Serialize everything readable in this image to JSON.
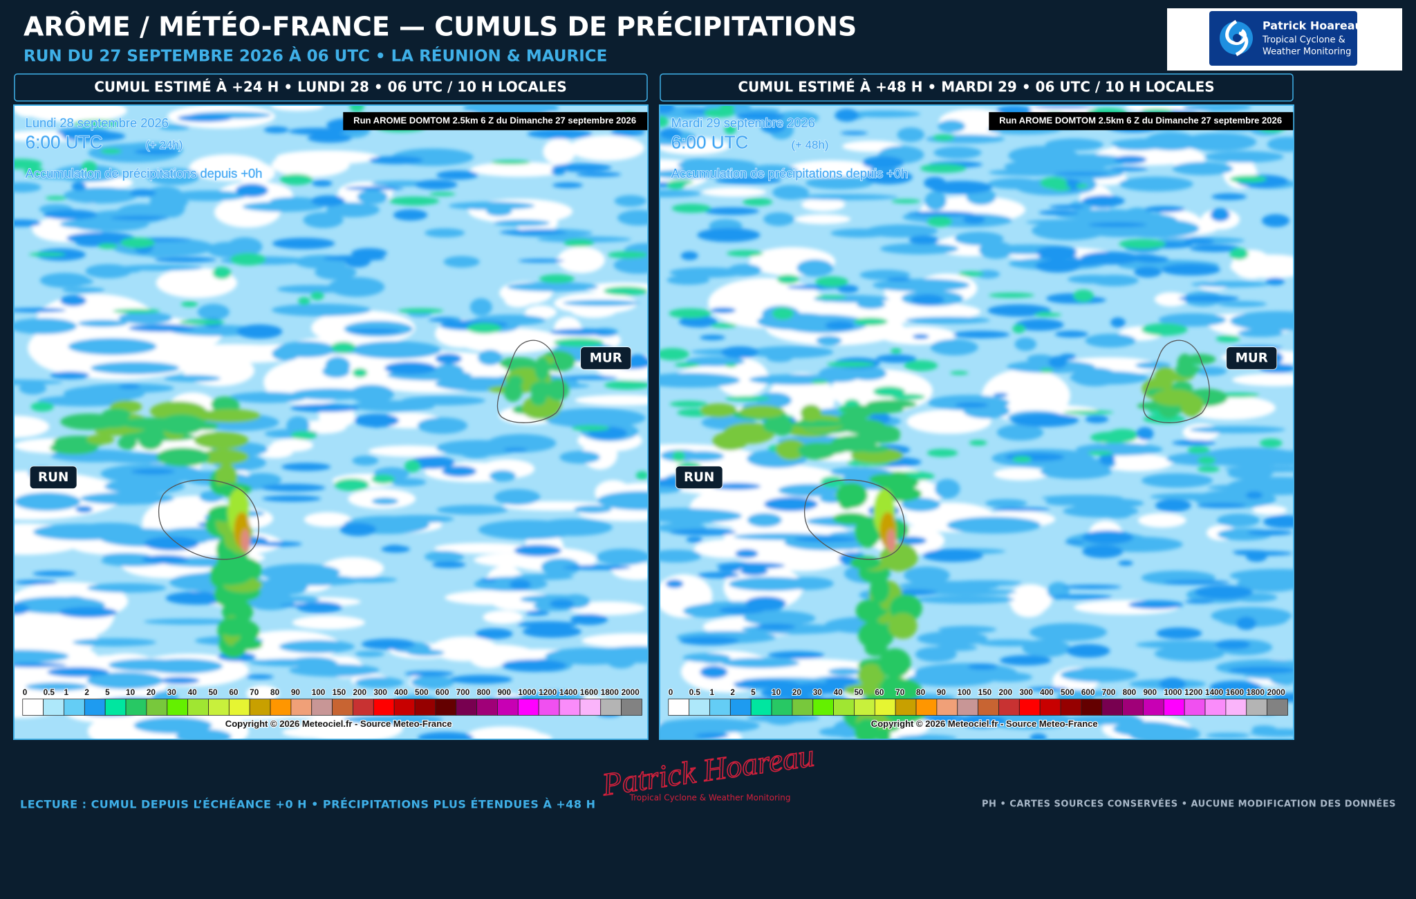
{
  "header": {
    "title": "ARÔME / MÉTÉO-FRANCE — CUMULS DE PRÉCIPITATIONS",
    "subtitle": "RUN DU 27 SEPTEMBRE 2026 À 06 UTC • LA RÉUNION & MAURICE"
  },
  "logo": {
    "name": "Patrick Hoareau",
    "line1": "Tropical Cyclone &",
    "line2": "Weather Monitoring"
  },
  "panels": [
    {
      "heading": "CUMUL ESTIMÉ À +24 H • LUNDI 28 • 06 UTC / 10 H LOCALES",
      "date": "Lundi 28 septembre 2026",
      "time": "6:00 UTC",
      "lead": "(+ 24h)",
      "accumulation": "Accumulation de précipitations depuis +0h",
      "run": "Run AROME DOMTOM 2.5km 6 Z du Dimanche 27 septembre 2026",
      "labels": [
        "RUN",
        "MUR"
      ],
      "copyright": "Copyright © 2026 Meteociel.fr - Source Meteo-France"
    },
    {
      "heading": "CUMUL ESTIMÉ À +48 H • MARDI 29 • 06 UTC / 10 H LOCALES",
      "date": "Mardi 29 septembre 2026",
      "time": "6:00 UTC",
      "lead": "(+ 48h)",
      "accumulation": "Accumulation de précipitations depuis +0h",
      "run": "Run AROME DOMTOM 2.5km 6 Z du Dimanche 27 septembre 2026",
      "labels": [
        "RUN",
        "MUR"
      ],
      "copyright": "Copyright © 2026 Meteociel.fr - Source Meteo-France"
    }
  ],
  "legend": {
    "labels": [
      "0",
      "0.5",
      "1",
      "2",
      "5",
      "10",
      "20",
      "30",
      "40",
      "50",
      "60",
      "70",
      "80",
      "90",
      "100",
      "150",
      "200",
      "300",
      "400",
      "500",
      "600",
      "700",
      "800",
      "900",
      "1000",
      "1200",
      "1400",
      "1600",
      "1800",
      "2000"
    ],
    "colors": [
      "#ffffff",
      "#aee8fa",
      "#64cdf5",
      "#1e9bf0",
      "#00e6a0",
      "#28c864",
      "#78c83c",
      "#64f000",
      "#a0e632",
      "#c8f03c",
      "#e6f532",
      "#c8a000",
      "#ff9600",
      "#f0a078",
      "#c89696",
      "#c86432",
      "#c83232",
      "#ff0000",
      "#c80000",
      "#960000",
      "#640000",
      "#780050",
      "#a00078",
      "#c800b4",
      "#ff00ff",
      "#f050f0",
      "#fa8cfa",
      "#fab4fa",
      "#b4b4b4",
      "#828282"
    ]
  },
  "footer": {
    "note": "LECTURE : CUMUL DEPUIS L’ÉCHÉANCE +0 H • PRÉCIPITATIONS PLUS ÉTENDUES À +48 H",
    "signature": "Patrick Hoareau",
    "signature_sub": "Tropical Cyclone & Weather Monitoring",
    "credits": "PH • CARTES SOURCES CONSERVÉES • AUCUNE MODIFICATION DES DONNÉES"
  }
}
